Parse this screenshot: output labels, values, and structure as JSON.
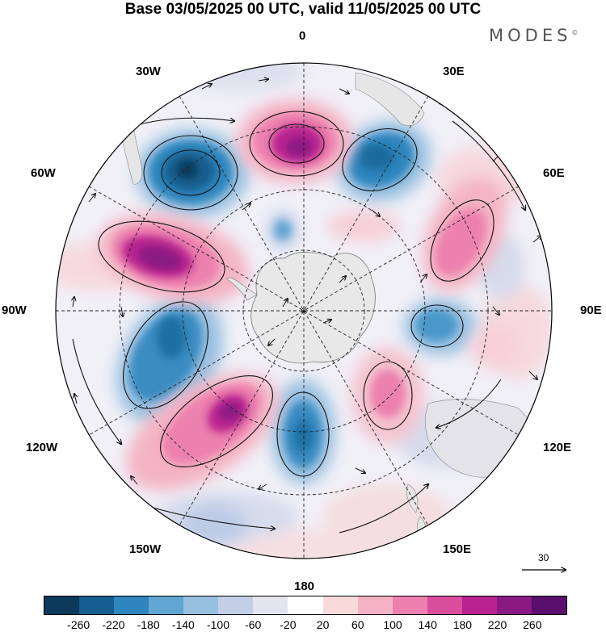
{
  "title": "Base 03/05/2025 00 UTC, valid 11/05/2025 00 UTC",
  "brand": "MODES",
  "brand_mark": "©",
  "longitude_labels": {
    "lon_0": "0",
    "lon_30e": "30E",
    "lon_60e": "60E",
    "lon_90e": "90E",
    "lon_120e": "120E",
    "lon_150e": "150E",
    "lon_180": "180",
    "lon_150w": "150W",
    "lon_120w": "120W",
    "lon_90w": "90W",
    "lon_60w": "60W",
    "lon_30w": "30W"
  },
  "vector_reference": {
    "value": "30"
  },
  "colorbar": {
    "colors": [
      "#0b3a5a",
      "#155e8f",
      "#2f86bd",
      "#5fa6d2",
      "#97bfe0",
      "#c3cfe6",
      "#e4e4f1",
      "#ffffff",
      "#f9dada",
      "#f4b3c4",
      "#ec80ae",
      "#d94d9d",
      "#b8238f",
      "#891a83",
      "#5a0f6e"
    ],
    "labels": [
      "-260",
      "-220",
      "-180",
      "-140",
      "-100",
      "-60",
      "-20",
      "20",
      "60",
      "100",
      "140",
      "180",
      "220",
      "260"
    ]
  },
  "colors": {
    "land": "#e8e8e8",
    "frame": "#000000",
    "graticule": "#222222"
  },
  "icon": "polar-stereographic-south-pole-map"
}
